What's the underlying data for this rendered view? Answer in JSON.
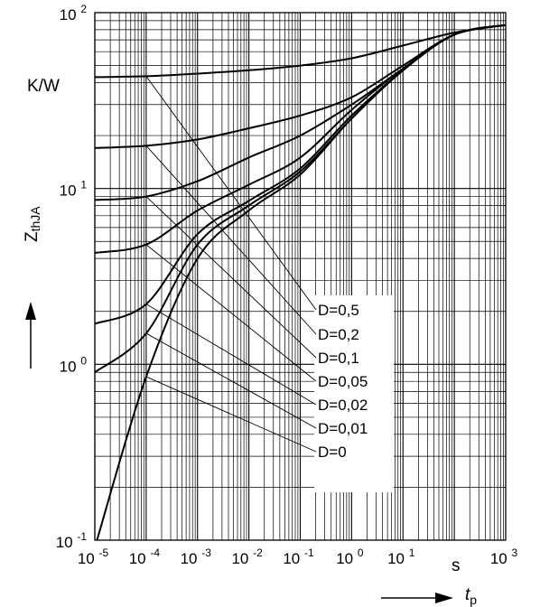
{
  "chart_data": {
    "type": "line",
    "title": "",
    "xlabel": "t",
    "xlabel_sub": "p",
    "xunit": "s",
    "ylabel": "Z",
    "ylabel_sub": "thJA",
    "yunit": "K/W",
    "xscale": "log",
    "yscale": "log",
    "xlim": [
      1e-05,
      1000
    ],
    "ylim": [
      0.1,
      100
    ],
    "grid": true,
    "legend_position": "center-right",
    "x_tick_labels": [
      {
        "base": "10",
        "exp": "-5"
      },
      {
        "base": "10",
        "exp": "-4"
      },
      {
        "base": "10",
        "exp": "-3"
      },
      {
        "base": "10",
        "exp": "-2"
      },
      {
        "base": "10",
        "exp": "-1"
      },
      {
        "base": "10",
        "exp": "0"
      },
      {
        "base": "10",
        "exp": "1"
      },
      {
        "base": "10",
        "exp": "3"
      }
    ],
    "y_tick_labels": [
      {
        "base": "10",
        "exp": "-1"
      },
      {
        "base": "10",
        "exp": "0"
      },
      {
        "base": "10",
        "exp": "1"
      },
      {
        "base": "10",
        "exp": "2"
      }
    ],
    "series": [
      {
        "name": "D=0,5",
        "x": [
          1e-05,
          0.0001,
          0.001,
          0.01,
          0.1,
          1,
          10,
          100,
          1000
        ],
        "y": [
          43,
          43.5,
          45,
          47,
          50,
          55,
          65,
          77,
          85
        ]
      },
      {
        "name": "D=0,2",
        "x": [
          1e-05,
          0.0001,
          0.001,
          0.01,
          0.1,
          1,
          10,
          100,
          1000
        ],
        "y": [
          17,
          17.5,
          19,
          22,
          26,
          33,
          50,
          75,
          85
        ]
      },
      {
        "name": "D=0,1",
        "x": [
          1e-05,
          0.0001,
          0.001,
          0.01,
          0.1,
          1,
          10,
          100,
          1000
        ],
        "y": [
          8.6,
          9,
          11,
          15,
          20,
          30,
          48,
          75,
          85
        ]
      },
      {
        "name": "D=0,05",
        "x": [
          1e-05,
          0.0001,
          0.001,
          0.01,
          0.1,
          1,
          10,
          100,
          1000
        ],
        "y": [
          4.3,
          4.8,
          7.5,
          10.5,
          15,
          28,
          48,
          75,
          85
        ]
      },
      {
        "name": "D=0,02",
        "x": [
          1e-05,
          0.0001,
          0.001,
          0.01,
          0.1,
          1,
          10,
          100,
          1000
        ],
        "y": [
          1.7,
          2.2,
          5.5,
          8.5,
          13,
          26,
          47,
          75,
          85
        ]
      },
      {
        "name": "D=0,01",
        "x": [
          1e-05,
          0.0001,
          0.001,
          0.01,
          0.1,
          1,
          10,
          100,
          1000
        ],
        "y": [
          0.9,
          1.5,
          4.8,
          8,
          12.5,
          25,
          47,
          75,
          85
        ]
      },
      {
        "name": "D=0",
        "x": [
          1.1e-05,
          0.0001,
          0.001,
          0.01,
          0.1,
          1,
          10,
          100,
          1000
        ],
        "y": [
          0.1,
          0.85,
          4,
          7.5,
          12,
          25,
          47,
          75,
          85
        ]
      }
    ],
    "legend_labels": [
      "D=0,5",
      "D=0,2",
      "D=0,1",
      "D=0,05",
      "D=0,02",
      "D=0,01",
      "D=0"
    ]
  }
}
